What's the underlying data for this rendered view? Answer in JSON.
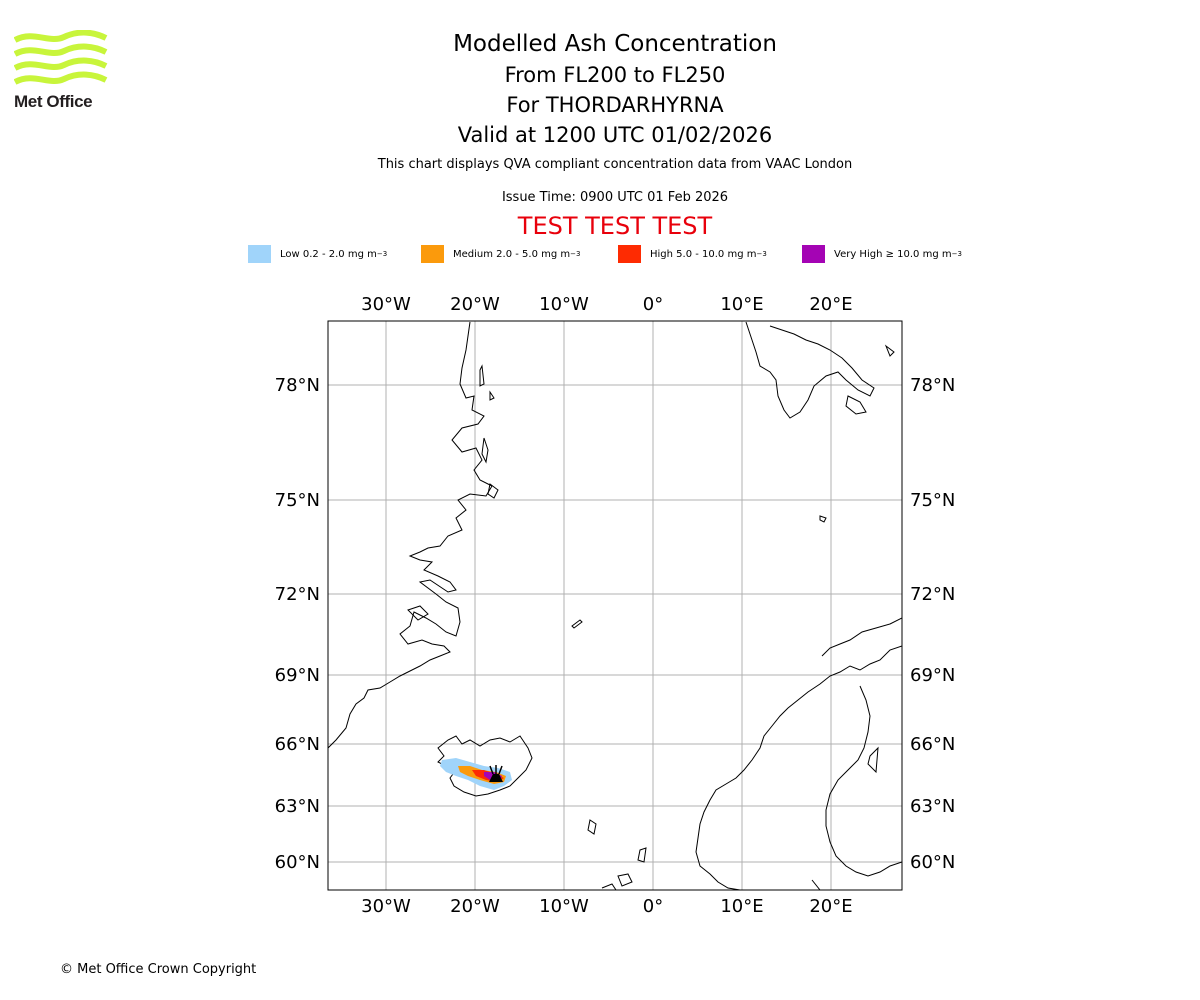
{
  "header": {
    "logo_text": "Met Office",
    "title": "Modelled Ash Concentration",
    "levels": "From FL200 to FL250",
    "volcano": "For THORDARHYRNA",
    "valid": "Valid at 1200 UTC 01/02/2026",
    "description": "This chart displays QVA compliant concentration data from VAAC London",
    "issue_time": "Issue Time: 0900 UTC 01 Feb 2026",
    "test_banner": "TEST TEST TEST"
  },
  "legend": [
    {
      "label": "Low 0.2 - 2.0 mg m",
      "exp": "−3",
      "color": "#a0d4fa"
    },
    {
      "label": "Medium 2.0 - 5.0 mg m",
      "exp": "−3",
      "color": "#fb9a0c"
    },
    {
      "label": "High 5.0 - 10.0 mg m",
      "exp": "−3",
      "color": "#fe2b02"
    },
    {
      "label": "Very High  ≥  10.0 mg m",
      "exp": "−3",
      "color": "#a404b4"
    }
  ],
  "map": {
    "longitude_labels": [
      "30°W",
      "20°W",
      "10°W",
      "0°",
      "10°E",
      "20°E"
    ],
    "latitude_labels": [
      "78°N",
      "75°N",
      "72°N",
      "69°N",
      "66°N",
      "63°N",
      "60°N"
    ],
    "volcano_symbol": "volcano-icon",
    "grid_color": "#b0b0b0"
  },
  "footer": {
    "copyright": "© Met Office Crown Copyright"
  }
}
